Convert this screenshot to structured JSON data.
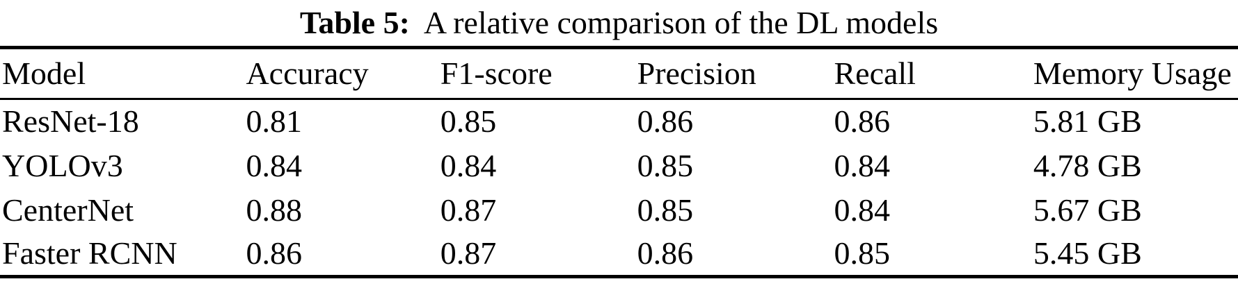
{
  "page": {
    "background_color": "#ffffff",
    "text_color": "#000000"
  },
  "title": {
    "label": "Table 5:",
    "caption": "A relative comparison of the DL models"
  },
  "table": {
    "columns": [
      "Model",
      "Accuracy",
      "F1-score",
      "Precision",
      "Recall",
      "Memory Usage"
    ],
    "rows": [
      [
        "ResNet-18",
        "0.81",
        "0.85",
        "0.86",
        "0.86",
        "5.81 GB"
      ],
      [
        "YOLOv3",
        "0.84",
        "0.84",
        "0.85",
        "0.84",
        "4.78 GB"
      ],
      [
        "CenterNet",
        "0.88",
        "0.87",
        "0.85",
        "0.84",
        "5.67 GB"
      ],
      [
        "Faster RCNN",
        "0.86",
        "0.87",
        "0.86",
        "0.85",
        "5.45 GB"
      ]
    ]
  },
  "chart_data": {
    "type": "table",
    "title": "Table 5: A relative comparison of the DL models",
    "columns": [
      "Model",
      "Accuracy",
      "F1-score",
      "Precision",
      "Recall",
      "Memory Usage"
    ],
    "rows": [
      {
        "model": "ResNet-18",
        "accuracy": 0.81,
        "f1_score": 0.85,
        "precision": 0.86,
        "recall": 0.86,
        "memory_usage": "5.81 GB"
      },
      {
        "model": "YOLOv3",
        "accuracy": 0.84,
        "f1_score": 0.84,
        "precision": 0.85,
        "recall": 0.84,
        "memory_usage": "4.78 GB"
      },
      {
        "model": "CenterNet",
        "accuracy": 0.88,
        "f1_score": 0.87,
        "precision": 0.85,
        "recall": 0.84,
        "memory_usage": "5.67 GB"
      },
      {
        "model": "Faster RCNN",
        "accuracy": 0.86,
        "f1_score": 0.87,
        "precision": 0.86,
        "recall": 0.85,
        "memory_usage": "5.45 GB"
      }
    ]
  }
}
